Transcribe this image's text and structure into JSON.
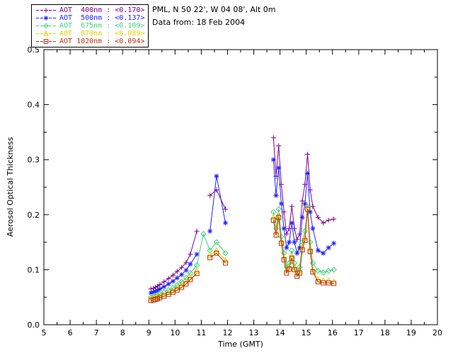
{
  "header": {
    "location_line": "PML, N 50 22', W 04 08', Alt 0m",
    "date_line": "Data from: 18 Feb 2004"
  },
  "chart_data": {
    "type": "line",
    "title": "",
    "xlabel": "Time (GMT)",
    "ylabel": "Aerosol Optical Thickness",
    "xlim": [
      5,
      20
    ],
    "ylim": [
      0.0,
      0.5
    ],
    "xticks": [
      5,
      6,
      7,
      8,
      9,
      10,
      11,
      12,
      13,
      14,
      15,
      16,
      17,
      18,
      19,
      20
    ],
    "yticks": [
      0.0,
      0.1,
      0.2,
      0.3,
      0.4,
      0.5
    ],
    "grid": false,
    "legend_position": "top-left",
    "x": [
      9.08,
      9.17,
      9.25,
      9.33,
      9.42,
      9.58,
      9.75,
      9.92,
      10.08,
      10.25,
      10.42,
      10.58,
      10.83,
      11.08,
      11.33,
      11.58,
      11.92,
      13.75,
      13.85,
      13.95,
      14.05,
      14.15,
      14.25,
      14.35,
      14.45,
      14.55,
      14.65,
      14.75,
      14.85,
      14.95,
      15.05,
      15.15,
      15.25,
      15.45,
      15.65,
      15.85,
      16.05
    ],
    "series": [
      {
        "name": "AOT 400nm",
        "legend_label": "AOT  400nm : <0.170>",
        "mean": "<0.170>",
        "color": "#800090",
        "marker": "plus",
        "values": [
          0.065,
          0.066,
          0.068,
          0.07,
          0.073,
          0.078,
          0.084,
          0.09,
          0.097,
          0.104,
          0.113,
          0.128,
          0.17,
          null,
          0.235,
          0.245,
          0.21,
          0.34,
          0.27,
          0.325,
          0.255,
          0.205,
          0.165,
          0.175,
          0.215,
          0.175,
          0.155,
          0.165,
          0.225,
          0.255,
          0.31,
          0.245,
          0.215,
          0.195,
          0.185,
          0.19,
          0.192
        ]
      },
      {
        "name": "AOT 500nm",
        "legend_label": "AOT  500nm : <0.137>",
        "mean": "<0.137>",
        "color": "#2222ff",
        "marker": "asterisk",
        "values": [
          0.058,
          0.059,
          0.061,
          0.062,
          0.065,
          0.069,
          0.074,
          0.079,
          0.085,
          0.091,
          0.099,
          0.11,
          0.128,
          null,
          0.17,
          0.27,
          0.185,
          0.3,
          0.235,
          0.285,
          0.22,
          0.175,
          0.14,
          0.15,
          0.185,
          0.15,
          0.13,
          0.14,
          0.195,
          0.22,
          0.275,
          0.205,
          0.175,
          0.135,
          0.13,
          0.14,
          0.148
        ]
      },
      {
        "name": "AOT 675nm",
        "legend_label": "AOT  675nm : <0.109>",
        "mean": "<0.109>",
        "color": "#3fd07f",
        "marker": "diamond",
        "values": [
          0.05,
          0.051,
          0.052,
          0.054,
          0.056,
          0.059,
          0.063,
          0.067,
          0.072,
          0.078,
          0.085,
          0.094,
          0.108,
          0.165,
          0.135,
          0.15,
          0.13,
          0.205,
          0.175,
          0.21,
          0.16,
          0.13,
          0.105,
          0.112,
          0.135,
          0.112,
          0.098,
          0.105,
          0.15,
          0.17,
          0.215,
          0.15,
          0.112,
          0.098,
          0.095,
          0.098,
          0.1
        ]
      },
      {
        "name": "AOT 870nm",
        "legend_label": "AOT  870nm : <0.089>",
        "mean": "<0.089>",
        "color": "#e0d000",
        "marker": "triangle",
        "values": [
          0.047,
          0.048,
          0.049,
          0.05,
          0.052,
          0.055,
          0.058,
          0.062,
          0.066,
          0.071,
          0.078,
          0.086,
          0.098,
          null,
          0.127,
          0.135,
          0.117,
          0.195,
          0.168,
          0.2,
          0.152,
          0.122,
          0.098,
          0.105,
          0.125,
          0.104,
          0.092,
          0.098,
          0.14,
          0.158,
          0.213,
          0.138,
          0.1,
          0.082,
          0.08,
          0.08,
          0.078
        ]
      },
      {
        "name": "AOT 1020nm",
        "legend_label": "AOT 1020nm : <0.094>",
        "mean": "<0.094>",
        "color": "#c03010",
        "marker": "square",
        "values": [
          0.044,
          0.045,
          0.046,
          0.047,
          0.049,
          0.052,
          0.055,
          0.059,
          0.063,
          0.068,
          0.074,
          0.082,
          0.093,
          null,
          0.122,
          0.13,
          0.112,
          0.19,
          0.163,
          0.195,
          0.148,
          0.118,
          0.094,
          0.101,
          0.121,
          0.1,
          0.088,
          0.094,
          0.136,
          0.153,
          0.21,
          0.133,
          0.096,
          0.078,
          0.076,
          0.076,
          0.075
        ]
      }
    ]
  }
}
